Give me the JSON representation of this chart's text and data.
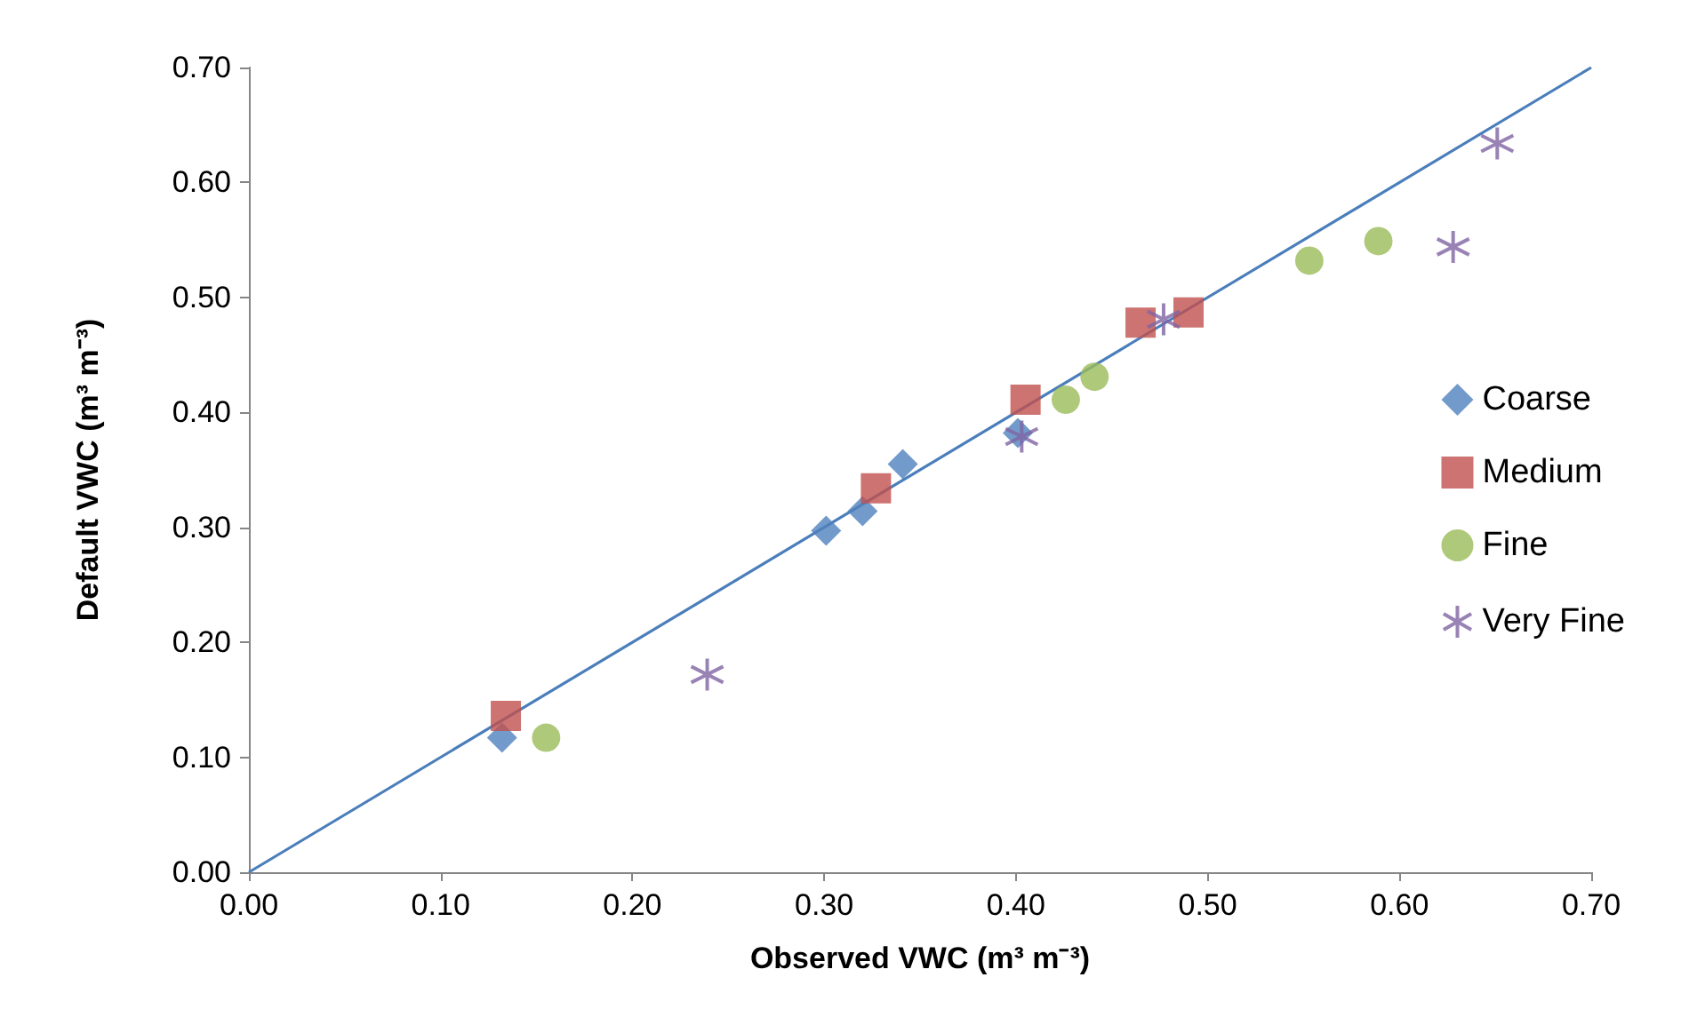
{
  "chart_data": {
    "type": "scatter",
    "xlabel": "Observed VWC (m³ m⁻³)",
    "ylabel": "Default VWC (m³ m⁻³)",
    "xlim": [
      0,
      0.7
    ],
    "ylim": [
      0,
      0.7
    ],
    "xticks": [
      {
        "value": 0,
        "label": "0.00"
      },
      {
        "value": 0.1,
        "label": "0.10"
      },
      {
        "value": 0.2,
        "label": "0.20"
      },
      {
        "value": 0.3,
        "label": "0.30"
      },
      {
        "value": 0.4,
        "label": "0.40"
      },
      {
        "value": 0.5,
        "label": "0.50"
      },
      {
        "value": 0.6,
        "label": "0.60"
      },
      {
        "value": 0.7,
        "label": "0.70"
      }
    ],
    "yticks": [
      {
        "value": 0,
        "label": "0.00"
      },
      {
        "value": 0.1,
        "label": "0.10"
      },
      {
        "value": 0.2,
        "label": "0.20"
      },
      {
        "value": 0.3,
        "label": "0.30"
      },
      {
        "value": 0.4,
        "label": "0.40"
      },
      {
        "value": 0.5,
        "label": "0.50"
      },
      {
        "value": 0.6,
        "label": "0.60"
      },
      {
        "value": 0.7,
        "label": "0.70"
      }
    ],
    "grid": false,
    "legend": "right",
    "series": [
      {
        "name": "Coarse",
        "color": "#4f81bd",
        "marker": "diamond",
        "x": [
          0.132,
          0.301,
          0.32,
          0.341,
          0.401
        ],
        "values": [
          0.117,
          0.297,
          0.314,
          0.355,
          0.382
        ]
      },
      {
        "name": "Medium",
        "color": "#c0504d",
        "marker": "square",
        "x": [
          0.134,
          0.327,
          0.405,
          0.465,
          0.49
        ],
        "values": [
          0.136,
          0.334,
          0.411,
          0.478,
          0.487
        ]
      },
      {
        "name": "Fine",
        "color": "#9bbb59",
        "marker": "circle",
        "x": [
          0.155,
          0.426,
          0.441,
          0.553,
          0.589
        ],
        "values": [
          0.117,
          0.411,
          0.431,
          0.532,
          0.549
        ]
      },
      {
        "name": "Very Fine",
        "color": "#8064a2",
        "marker": "cross",
        "x": [
          0.239,
          0.403,
          0.477,
          0.628,
          0.651
        ],
        "values": [
          0.172,
          0.379,
          0.481,
          0.544,
          0.634
        ]
      },
      {
        "type": "line",
        "color": "#4a7ebb",
        "marker": "none",
        "x": [
          0,
          0.7
        ],
        "values": [
          0,
          0.7
        ]
      }
    ]
  }
}
